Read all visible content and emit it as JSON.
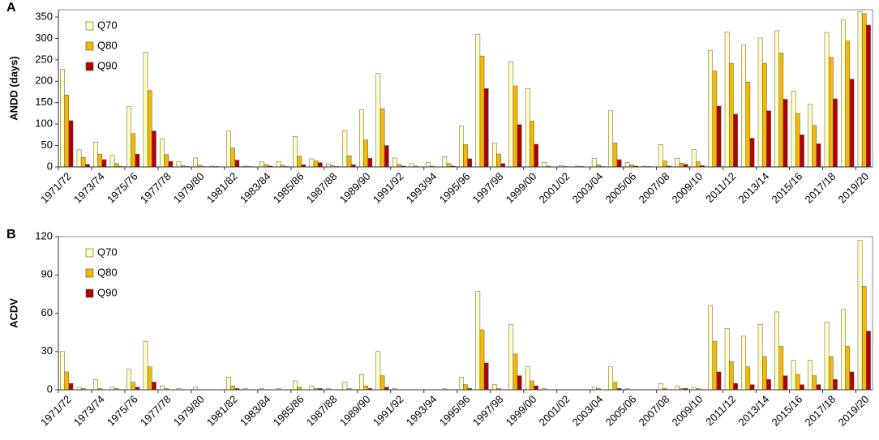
{
  "chart_data": [
    {
      "type": "bar",
      "label": "A",
      "y_label": "ANDD (days)",
      "categories": [
        "1971/72",
        null,
        "1973/74",
        null,
        "1975/76",
        null,
        "1977/78",
        null,
        "1979/80",
        null,
        "1981/82",
        null,
        "1983/84",
        null,
        "1985/86",
        null,
        "1987/88",
        null,
        "1989/90",
        null,
        "1991/92",
        null,
        "1993/94",
        null,
        "1995/96",
        null,
        "1997/98",
        null,
        "1999/00",
        null,
        "2001/02",
        null,
        "2003/04",
        null,
        "2005/06",
        null,
        "2007/08",
        null,
        "2009/10",
        null,
        "2011/12",
        null,
        "2013/14",
        null,
        "2015/16",
        null,
        "2017/18",
        null,
        "2019/20"
      ],
      "series": [
        {
          "name": "Q70",
          "color": "#ffffc0",
          "values": [
            228,
            40,
            58,
            27,
            141,
            268,
            65,
            13,
            21,
            2,
            84,
            2,
            12,
            13,
            71,
            19,
            7,
            85,
            133,
            218,
            21,
            8,
            10,
            24,
            96,
            309,
            56,
            246,
            183,
            11,
            3,
            2,
            20,
            131,
            10,
            2,
            52,
            20,
            41,
            272,
            315,
            285,
            301,
            318,
            177,
            146,
            314,
            343,
            363
          ]
        },
        {
          "name": "Q80",
          "color": "#f5b800",
          "values": [
            168,
            22,
            30,
            8,
            78,
            178,
            29,
            3,
            4,
            1,
            44,
            1,
            6,
            4,
            25,
            14,
            3,
            26,
            63,
            136,
            6,
            2,
            2,
            8,
            52,
            259,
            30,
            189,
            107,
            2,
            1,
            1,
            5,
            56,
            5,
            1,
            14,
            9,
            12,
            224,
            242,
            198,
            242,
            266,
            125,
            97,
            256,
            294,
            358
          ]
        },
        {
          "name": "Q90",
          "color": "#b00000",
          "values": [
            108,
            6,
            17,
            1,
            30,
            84,
            13,
            1,
            1,
            0,
            16,
            0,
            2,
            1,
            5,
            10,
            1,
            5,
            20,
            50,
            2,
            0,
            0,
            2,
            19,
            183,
            8,
            99,
            53,
            0,
            0,
            0,
            1,
            17,
            2,
            0,
            2,
            6,
            3,
            142,
            123,
            67,
            131,
            158,
            75,
            54,
            159,
            205,
            331
          ]
        }
      ],
      "ylim": [
        0,
        367
      ],
      "yticks": [
        0,
        50,
        100,
        150,
        200,
        250,
        300,
        350
      ],
      "legend": "upper left"
    },
    {
      "type": "bar",
      "label": "B",
      "y_label": "ACDV",
      "categories": [
        "1971/72",
        null,
        "1973/74",
        null,
        "1975/76",
        null,
        "1977/78",
        null,
        "1979/80",
        null,
        "1981/82",
        null,
        "1983/84",
        null,
        "1985/86",
        null,
        "1987/88",
        null,
        "1989/90",
        null,
        "1991/92",
        null,
        "1993/94",
        null,
        "1995/96",
        null,
        "1997/98",
        null,
        "1999/00",
        null,
        "2001/02",
        null,
        "2003/04",
        null,
        "2005/06",
        null,
        "2007/08",
        null,
        "2009/10",
        null,
        "2011/12",
        null,
        "2013/14",
        null,
        "2015/16",
        null,
        "2017/18",
        null,
        "2019/20"
      ],
      "series": [
        {
          "name": "Q70",
          "color": "#ffffc0",
          "values": [
            30,
            2,
            8,
            2,
            16,
            38,
            3,
            1,
            2,
            0,
            10,
            1,
            1,
            1,
            7,
            3,
            1,
            6,
            12,
            30,
            1,
            0,
            0,
            1,
            10,
            77,
            4,
            51,
            18,
            1,
            0,
            0,
            2,
            18,
            1,
            0,
            5,
            3,
            2,
            66,
            48,
            42,
            51,
            61,
            23,
            23,
            53,
            63,
            117
          ]
        },
        {
          "name": "Q80",
          "color": "#f5b800",
          "values": [
            14,
            1,
            1,
            1,
            6,
            18,
            1,
            0,
            0,
            0,
            3,
            0,
            0,
            0,
            2,
            1,
            0,
            1,
            3,
            11,
            0,
            0,
            0,
            0,
            4,
            47,
            1,
            28,
            7,
            0,
            0,
            0,
            1,
            6,
            0,
            0,
            1,
            1,
            1,
            38,
            22,
            18,
            26,
            34,
            12,
            11,
            26,
            34,
            81
          ]
        },
        {
          "name": "Q90",
          "color": "#b00000",
          "values": [
            5,
            0,
            0,
            0,
            2,
            6,
            0,
            0,
            0,
            0,
            1,
            0,
            0,
            0,
            0,
            1,
            0,
            0,
            1,
            2,
            0,
            0,
            0,
            0,
            1,
            21,
            0,
            11,
            3,
            0,
            0,
            0,
            0,
            1,
            0,
            0,
            0,
            1,
            0,
            14,
            5,
            4,
            8,
            11,
            4,
            4,
            8,
            14,
            46
          ]
        }
      ],
      "ylim": [
        0,
        120
      ],
      "yticks": [
        0,
        30,
        60,
        90,
        120
      ],
      "legend": "upper left"
    }
  ]
}
